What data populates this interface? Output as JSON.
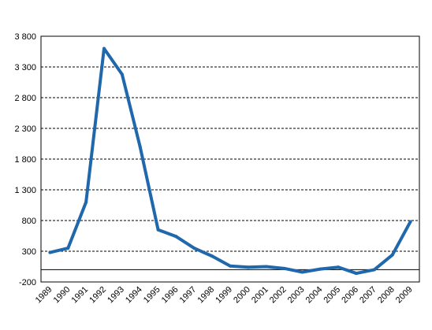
{
  "chart_data": {
    "type": "line",
    "categories": [
      "1989",
      "1990",
      "1991",
      "1992",
      "1993",
      "1994",
      "1995",
      "1996",
      "1997",
      "1998",
      "1999",
      "2000",
      "2001",
      "2002",
      "2003",
      "2004",
      "2005",
      "2006",
      "2007",
      "2008",
      "2009"
    ],
    "series": [
      {
        "values": [
          280,
          350,
          1100,
          3600,
          3180,
          2000,
          650,
          540,
          350,
          220,
          60,
          40,
          50,
          20,
          -40,
          10,
          40,
          -60,
          0,
          240,
          780
        ],
        "color": "#1f68ac"
      }
    ],
    "y_ticks": [
      "3 800",
      "3 300",
      "2 800",
      "2 300",
      "1 800",
      "1 300",
      "800",
      "300",
      "-200"
    ],
    "ylim": [
      -200,
      3800
    ],
    "grid": "dashed horizontal",
    "zero_line": true,
    "legend": "none"
  }
}
